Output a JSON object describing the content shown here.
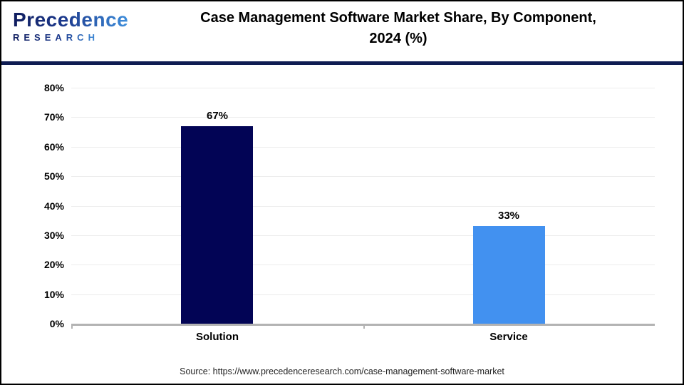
{
  "header": {
    "logo": {
      "line1": "Precedence",
      "line2": "RESEARCH"
    },
    "title_line1": "Case Management Software Market Share, By Component,",
    "title_line2": "2024 (%)"
  },
  "chart_data": {
    "type": "bar",
    "title": "Case Management Software Market Share, By Component, 2024 (%)",
    "categories": [
      "Solution",
      "Service"
    ],
    "values": [
      67,
      33
    ],
    "value_labels": [
      "67%",
      "33%"
    ],
    "bar_colors": [
      "#020455",
      "#4291F0"
    ],
    "xlabel": "",
    "ylabel": "",
    "ylim": [
      0,
      80
    ],
    "yticks": [
      0,
      10,
      20,
      30,
      40,
      50,
      60,
      70,
      80
    ],
    "ytick_labels": [
      "0%",
      "10%",
      "20%",
      "30%",
      "40%",
      "50%",
      "60%",
      "70%",
      "80%"
    ],
    "grid": "horizontal",
    "legend": "none"
  },
  "footer": {
    "source": "Source: https://www.precedenceresearch.com/case-management-software-market"
  },
  "colors": {
    "bar_solution": "#020455",
    "bar_service": "#4291F0",
    "separator": "#0f1c52",
    "gridline": "#ececec",
    "axis": "#b3b3b3",
    "logo_gradient_start": "#101d5e",
    "logo_gradient_end": "#3f8fdc"
  }
}
